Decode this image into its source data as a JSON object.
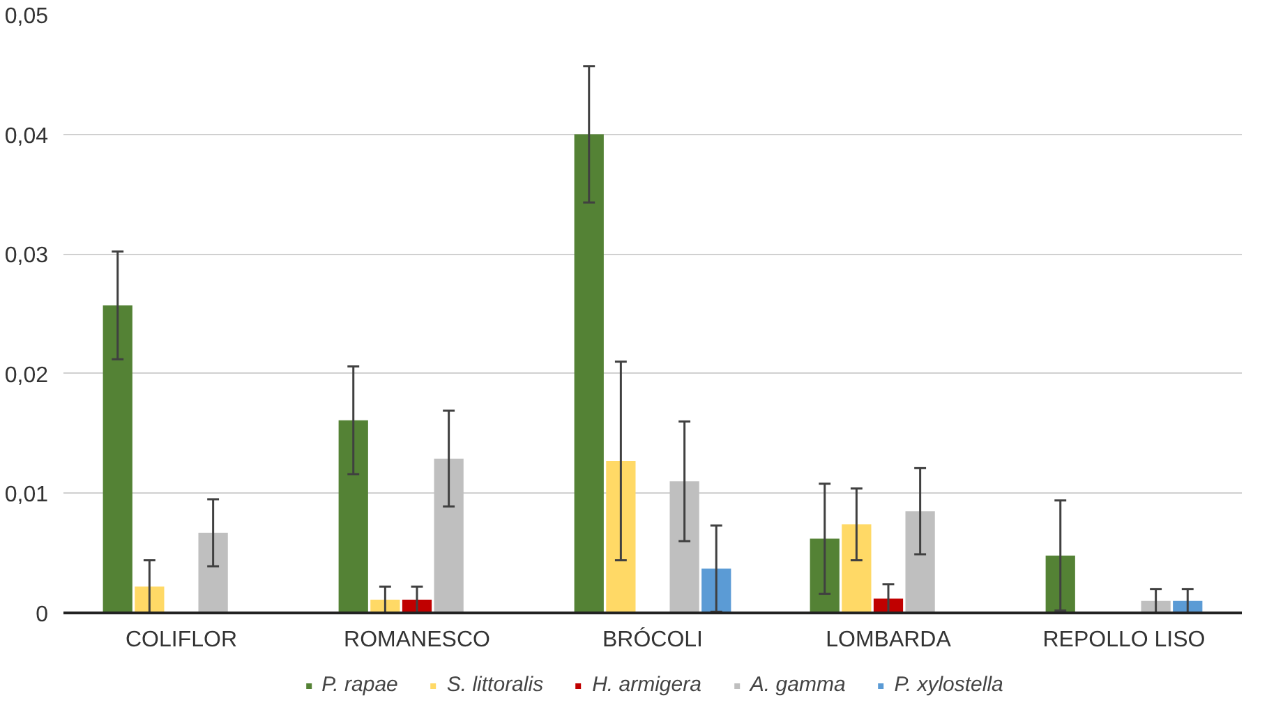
{
  "chart_data": {
    "type": "bar",
    "categories": [
      "COLIFLOR",
      "ROMANESCO",
      "BRÓCOLI",
      "LOMBARDA",
      "REPOLLO LISO"
    ],
    "series": [
      {
        "name": "P. rapae",
        "color": "#548235",
        "values": [
          0.0257,
          0.0161,
          0.04,
          0.0062,
          0.0048
        ],
        "errors": [
          0.0045,
          0.0045,
          0.0057,
          0.0046,
          0.0046
        ]
      },
      {
        "name": "S. littoralis",
        "color": "#ffd966",
        "values": [
          0.0022,
          0.0011,
          0.0127,
          0.0074,
          0
        ],
        "errors": [
          0.0022,
          0.0011,
          0.0083,
          0.003,
          null
        ]
      },
      {
        "name": "H. armigera",
        "color": "#c00000",
        "values": [
          0,
          0.0011,
          0,
          0.0012,
          0
        ],
        "errors": [
          null,
          0.0011,
          null,
          0.0012,
          null
        ]
      },
      {
        "name": "A. gamma",
        "color": "#bfbfbf",
        "values": [
          0.0067,
          0.0129,
          0.011,
          0.0085,
          0.001
        ],
        "errors": [
          0.0028,
          0.004,
          0.005,
          0.0036,
          0.001
        ]
      },
      {
        "name": "P. xylostella",
        "color": "#5b9bd5",
        "values": [
          0,
          0,
          0.0037,
          0,
          0.001
        ],
        "errors": [
          null,
          null,
          0.0036,
          null,
          0.001
        ]
      }
    ],
    "ylim": [
      0,
      0.05
    ],
    "yticks": [
      {
        "value": 0,
        "label": "0"
      },
      {
        "value": 0.01,
        "label": "0,01"
      },
      {
        "value": 0.02,
        "label": "0,02"
      },
      {
        "value": 0.03,
        "label": "0,03"
      },
      {
        "value": 0.04,
        "label": "0,04"
      },
      {
        "value": 0.05,
        "label": "0,05"
      }
    ],
    "grid": "y",
    "legend": "bottom"
  }
}
